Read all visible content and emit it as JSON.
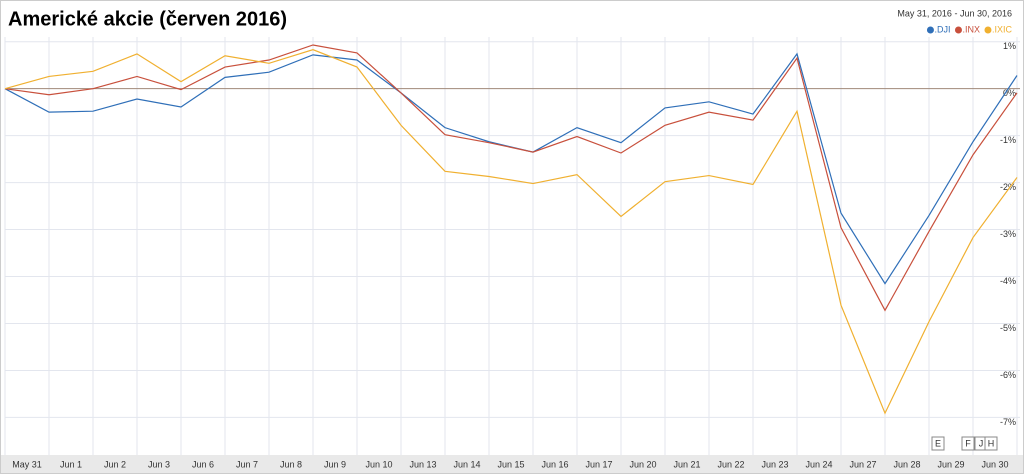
{
  "chart_data": {
    "type": "line",
    "title": "Americké akcie (červen 2016)",
    "date_range": "May 31, 2016  -  Jun 30, 2016",
    "categories": [
      null,
      "May 31",
      "Jun 1",
      "Jun 2",
      "Jun 3",
      "Jun 6",
      "Jun 7",
      "Jun 8",
      "Jun 9",
      "Jun 10",
      "Jun 13",
      "Jun 14",
      "Jun 15",
      "Jun 16",
      "Jun 17",
      "Jun 20",
      "Jun 21",
      "Jun 22",
      "Jun 23",
      "Jun 24",
      "Jun 27",
      "Jun 28",
      "Jun 29",
      "Jun 30"
    ],
    "series": [
      {
        "name": ".DJI",
        "color": "#2f6fb8",
        "values": [
          0,
          -0.5,
          -0.48,
          -0.22,
          -0.39,
          0.24,
          0.35,
          0.72,
          0.61,
          -0.09,
          -0.83,
          -1.13,
          -1.35,
          -0.83,
          -1.15,
          -0.41,
          -0.28,
          -0.54,
          0.74,
          -2.65,
          -4.15,
          -2.7,
          -1.13,
          0.28
        ]
      },
      {
        "name": ".INX",
        "color": "#c8503c",
        "values": [
          0,
          -0.13,
          0,
          0.26,
          -0.02,
          0.46,
          0.61,
          0.93,
          0.76,
          -0.09,
          -0.98,
          -1.15,
          -1.35,
          -1.02,
          -1.37,
          -0.78,
          -0.5,
          -0.67,
          0.65,
          -2.96,
          -4.72,
          -3.04,
          -1.41,
          -0.09
        ]
      },
      {
        "name": ".IXIC",
        "color": "#f0b030",
        "values": [
          0,
          0.26,
          0.37,
          0.74,
          0.15,
          0.7,
          0.54,
          0.83,
          0.46,
          -0.78,
          -1.76,
          -1.87,
          -2.02,
          -1.83,
          -2.72,
          -1.98,
          -1.85,
          -2.04,
          -0.48,
          -4.61,
          -6.91,
          -4.96,
          -3.17,
          -1.89
        ]
      }
    ],
    "ylim": [
      -7.8,
      1.1
    ],
    "yticks": [
      {
        "value": 1,
        "label": "1%"
      },
      {
        "value": 0,
        "label": "0%"
      },
      {
        "value": -1,
        "label": "-1%"
      },
      {
        "value": -2,
        "label": "-2%"
      },
      {
        "value": -3,
        "label": "-3%"
      },
      {
        "value": -4,
        "label": "-4%"
      },
      {
        "value": -5,
        "label": "-5%"
      },
      {
        "value": -6,
        "label": "-6%"
      },
      {
        "value": -7,
        "label": "-7%"
      }
    ],
    "grid": true,
    "legend": "top-right",
    "flags": [
      "E",
      "F",
      "J",
      "H"
    ]
  }
}
